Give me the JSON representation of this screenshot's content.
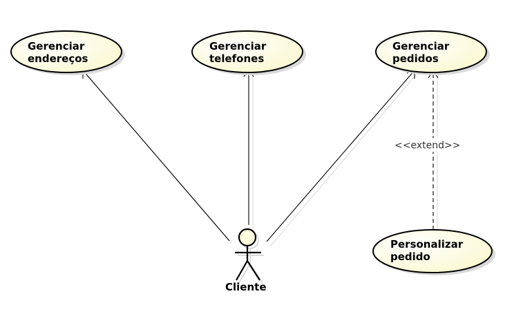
{
  "diagram": {
    "actor": {
      "name": "Cliente"
    },
    "use_cases": {
      "enderecos": {
        "line1": "Gerenciar",
        "line2": "endereços"
      },
      "telefones": {
        "line1": "Gerenciar",
        "line2": "telefones"
      },
      "pedidos": {
        "line1": "Gerenciar",
        "line2": "pedidos"
      },
      "personalizar": {
        "line1": "Personalizar",
        "line2": "pedido"
      }
    },
    "relationships": {
      "extend_label": "<<extend>>"
    },
    "colors": {
      "usecase_fill": "#fffde0",
      "usecase_stroke": "#000000",
      "shadow": "#d9d9d9",
      "line": "#000000"
    }
  }
}
